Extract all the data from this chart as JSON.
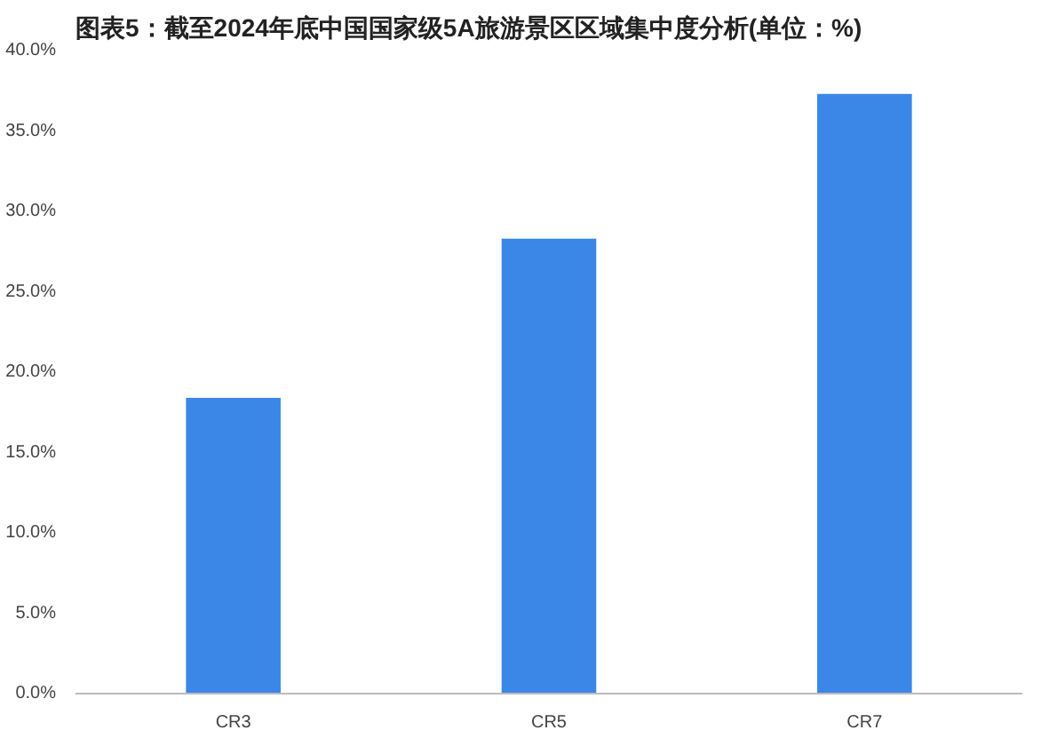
{
  "chart_data": {
    "type": "bar",
    "title": "图表5：截至2024年底中国国家级5A旅游景区区域集中度分析(单位：%)",
    "categories": [
      "CR3",
      "CR5",
      "CR7"
    ],
    "values": [
      18.4,
      28.3,
      37.3
    ],
    "color": "#3b87e8",
    "ylim": [
      0,
      40
    ],
    "yticks": [
      {
        "value": 0,
        "label": "0.0%"
      },
      {
        "value": 5,
        "label": "5.0%"
      },
      {
        "value": 10,
        "label": "10.0%"
      },
      {
        "value": 15,
        "label": "15.0%"
      },
      {
        "value": 20,
        "label": "20.0%"
      },
      {
        "value": 25,
        "label": "25.0%"
      },
      {
        "value": 30,
        "label": "30.0%"
      },
      {
        "value": 35,
        "label": "35.0%"
      },
      {
        "value": 40,
        "label": "40.0%"
      }
    ],
    "grid": false
  }
}
